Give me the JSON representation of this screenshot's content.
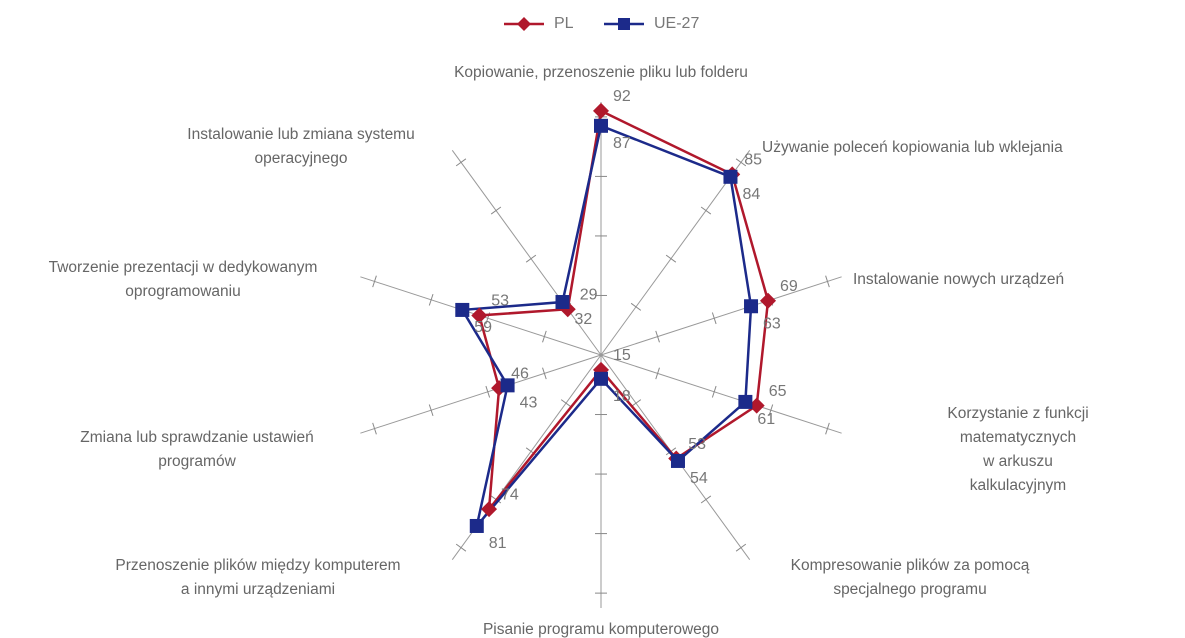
{
  "chart_data": {
    "type": "radar",
    "categories": [
      "Kopiowanie, przenoszenie pliku lub folderu",
      "Używanie poleceń kopiowania lub wklejania",
      "Instalowanie nowych urządzeń",
      "Korzystanie z funkcji matematycznych\nw arkuszu kalkulacyjnym",
      "Kompresowanie plików za pomocą\nspecjalnego programu",
      "Pisanie programu komputerowego",
      "Przenoszenie plików między komputerem\na innymi urządzeniami",
      "Zmiana lub sprawdzanie ustawień\nprogramów",
      "Tworzenie prezentacji w dedykowanym\noprogramowaniu",
      "Instalowanie lub zmiana systemu\noperacyjnego"
    ],
    "series": [
      {
        "name": "PL",
        "color": "#b0182c",
        "values": [
          92,
          85,
          69,
          65,
          53,
          15,
          74,
          46,
          53,
          29
        ]
      },
      {
        "name": "UE-27",
        "color": "#1c2a8a",
        "values": [
          87,
          84,
          63,
          61,
          54,
          18,
          81,
          43,
          59,
          32
        ]
      }
    ],
    "ylim": [
      10,
      95
    ],
    "yticks": [
      10,
      30,
      50,
      70,
      90
    ],
    "legend": "top"
  }
}
